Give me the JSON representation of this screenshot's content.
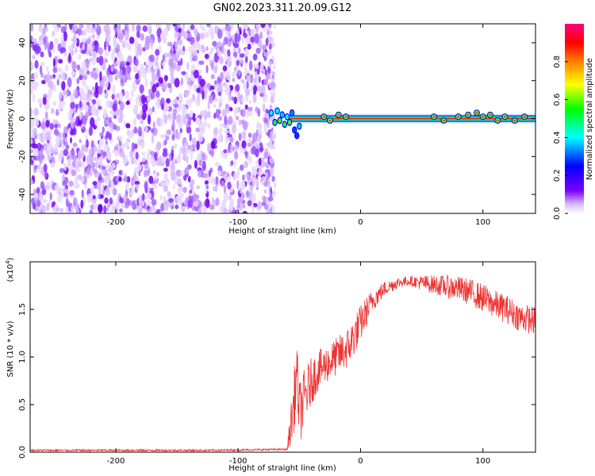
{
  "figure": {
    "title": "GN02.2023.311.20.09.G12"
  },
  "chart_data": [
    {
      "type": "heatmap",
      "name": "spectrogram",
      "xlabel": "Height of straight line (km)",
      "ylabel": "Frequency (Hz)",
      "xlim": [
        -270,
        143
      ],
      "ylim": [
        -50,
        50
      ],
      "xticks": [
        -200,
        -100,
        0,
        100
      ],
      "xtick_labels": [
        "-200",
        "-100",
        "0",
        "100"
      ],
      "yticks": [
        -40,
        -20,
        0,
        20,
        40
      ],
      "ytick_labels": [
        "-40",
        "-20",
        "0",
        "20",
        "40"
      ],
      "noise_region_x": [
        -270,
        -75
      ],
      "signal_line_freq": 0,
      "colorbar": {
        "label": "Normalized spectral amplitude",
        "range": [
          0,
          1
        ],
        "ticks": [
          0.0,
          0.2,
          0.4,
          0.6,
          0.8
        ],
        "tick_labels": [
          "0.0",
          "0.2",
          "0.4",
          "0.6",
          "0.8"
        ],
        "colormap": [
          "#ffffff",
          "#7b00ff",
          "#0000ff",
          "#00ffff",
          "#00ff00",
          "#ffff00",
          "#ff8000",
          "#ff0000",
          "#ff0080"
        ]
      }
    },
    {
      "type": "line",
      "name": "snr",
      "xlabel": "Height of straight line (km)",
      "ylabel": "SNR (10 * v/v)",
      "scale_label": "(x10",
      "scale_exp": "4",
      "scale_close": ")",
      "xlim": [
        -270,
        143
      ],
      "ylim": [
        0,
        2.0
      ],
      "xticks": [
        -200,
        -100,
        0,
        100
      ],
      "xtick_labels": [
        "-200",
        "-100",
        "0",
        "100"
      ],
      "yticks": [
        0,
        0.5,
        1.0,
        1.5
      ],
      "ytick_labels": [
        "0.0",
        "0.5",
        "1.0",
        "1.5"
      ],
      "color": "#ee3333",
      "envelope_x": [
        -270,
        -120,
        -60,
        -55,
        -52,
        -50,
        -45,
        -40,
        -35,
        -30,
        -20,
        -10,
        0,
        10,
        20,
        30,
        40,
        50,
        60,
        70,
        80,
        90,
        100,
        110,
        120,
        130,
        143
      ],
      "envelope_y": [
        0.02,
        0.02,
        0.03,
        0.45,
        0.85,
        0.4,
        0.6,
        0.75,
        0.85,
        0.9,
        1.0,
        1.1,
        1.35,
        1.6,
        1.72,
        1.78,
        1.8,
        1.78,
        1.76,
        1.74,
        1.72,
        1.68,
        1.62,
        1.55,
        1.5,
        1.42,
        1.38
      ],
      "envelope_amp": [
        0.01,
        0.01,
        0.01,
        0.35,
        0.3,
        0.35,
        0.3,
        0.25,
        0.22,
        0.2,
        0.2,
        0.22,
        0.2,
        0.12,
        0.08,
        0.06,
        0.05,
        0.08,
        0.1,
        0.12,
        0.13,
        0.14,
        0.15,
        0.15,
        0.15,
        0.15,
        0.15
      ]
    }
  ]
}
